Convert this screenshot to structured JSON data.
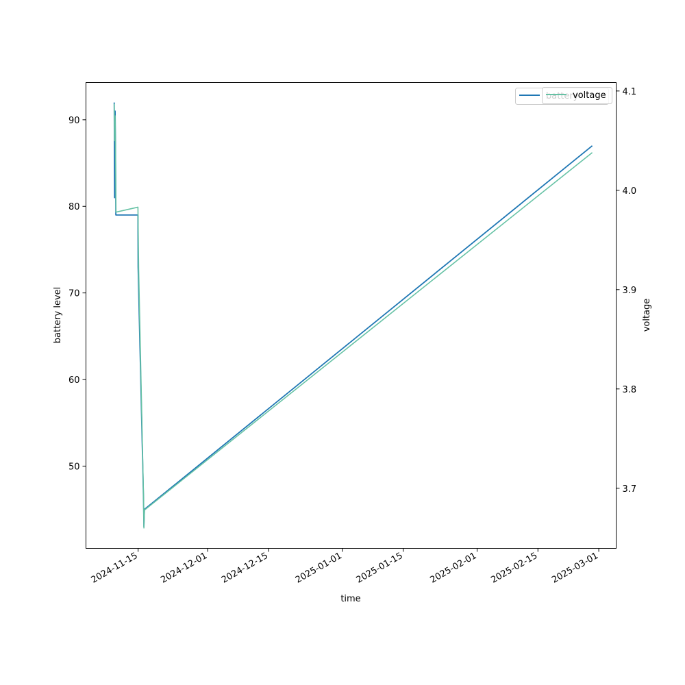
{
  "chart_data": {
    "type": "line",
    "xlabel": "time",
    "ylabel": "battery level",
    "y2label": "voltage",
    "x_ticks": [
      "2024-11-15",
      "2024-12-01",
      "2024-12-15",
      "2025-01-01",
      "2025-01-15",
      "2025-02-01",
      "2025-02-15",
      "2025-03-01"
    ],
    "y_ticks": [
      50,
      60,
      70,
      80,
      90
    ],
    "y2_ticks": [
      3.7,
      3.8,
      3.9,
      4.0,
      4.1
    ],
    "xlim": [
      "2024-11-03",
      "2025-03-05"
    ],
    "ylim": [
      40.5,
      94.3
    ],
    "y2lim": [
      3.6395,
      4.1085
    ],
    "grid": false,
    "legend_position": "top-right",
    "legends": [
      {
        "entries": [
          "battery"
        ],
        "overlapped": true
      },
      {
        "entries": [
          "voltage"
        ]
      }
    ],
    "series": [
      {
        "name": "battery",
        "axis": "left",
        "color": "#1f77b4",
        "points": [
          [
            "2024-11-09 12:00",
            92
          ],
          [
            "2024-11-09 14:00",
            81
          ],
          [
            "2024-11-09 17:00",
            91
          ],
          [
            "2024-11-09 19:00",
            87
          ],
          [
            "2024-11-09 21:00",
            79
          ],
          [
            "2024-11-14 23:00",
            79
          ],
          [
            "2024-11-15 00:00",
            73
          ],
          [
            "2024-11-16 06:00",
            46
          ],
          [
            "2024-11-16 08:00",
            43
          ],
          [
            "2024-11-16 11:00",
            45
          ],
          [
            "2025-02-27 12:00",
            87
          ]
        ]
      },
      {
        "name": "voltage",
        "axis": "right",
        "color": "#66c2a5",
        "points": [
          [
            "2024-11-09 12:00",
            4.087
          ],
          [
            "2024-11-09 14:00",
            4.05
          ],
          [
            "2024-11-09 17:00",
            4.075
          ],
          [
            "2024-11-09 19:00",
            4.04
          ],
          [
            "2024-11-09 22:00",
            3.978
          ],
          [
            "2024-11-14 23:00",
            3.983
          ],
          [
            "2024-11-15 03:00",
            3.92
          ],
          [
            "2024-11-16 06:00",
            3.69
          ],
          [
            "2024-11-16 08:00",
            3.66
          ],
          [
            "2024-11-16 11:00",
            3.678
          ],
          [
            "2025-02-27 12:00",
            4.038
          ]
        ]
      }
    ]
  }
}
